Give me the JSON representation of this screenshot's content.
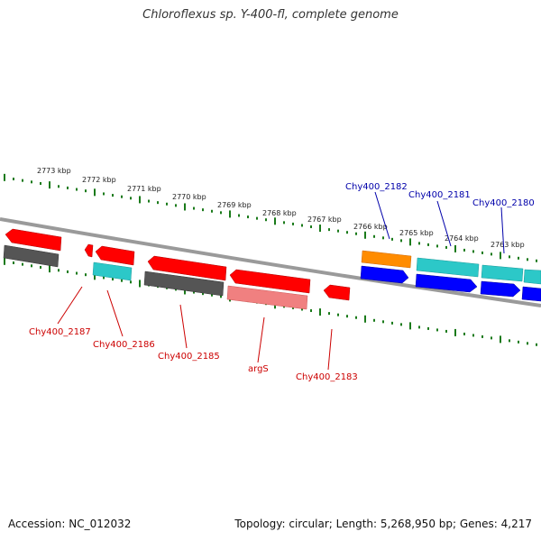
{
  "title": "Chloroflexus sp. Y-400-fl, complete genome",
  "footer": {
    "accession": "Accession: NC_012032",
    "summary": "Topology: circular; Length: 5,268,950 bp; Genes: 4,217"
  },
  "colors": {
    "backbone": "#888888",
    "ticks": "#1a7a1a",
    "red": "#ff0000",
    "dark_gray": "#555555",
    "cyan": "#2cc8c8",
    "salmon": "#f08080",
    "orange": "#ff8c00",
    "blue": "#0000ff",
    "label_red": "#cc0000",
    "label_blue": "#0000aa"
  },
  "scale_labels": [
    "2773 kbp",
    "2772 kbp",
    "2771 kbp",
    "2770 kbp",
    "2769 kbp",
    "2768 kbp",
    "2767 kbp",
    "2766 kbp",
    "2765 kbp",
    "2764 kbp",
    "2763 kbp"
  ],
  "top_labels": [
    "Chy400_2182",
    "Chy400_2181",
    "Chy400_2180"
  ],
  "bottom_labels": [
    "Chy400_2187",
    "Chy400_2186",
    "Chy400_2185",
    "argS",
    "Chy400_2183"
  ]
}
